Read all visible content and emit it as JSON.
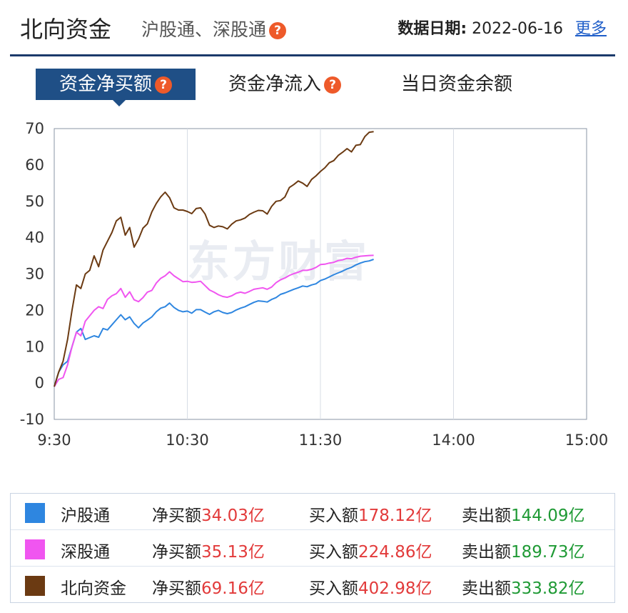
{
  "header": {
    "title": "北向资金",
    "subtitle": "沪股通、深股通",
    "help_glyph": "?",
    "date_label": "数据日期:",
    "date_value": "2022-06-16",
    "more_link": "更多"
  },
  "tabs": [
    {
      "label": "资金净买额",
      "active": true
    },
    {
      "label": "资金净流入",
      "active": false
    },
    {
      "label": "当日资金余额",
      "active": false
    }
  ],
  "watermark": "东方财富",
  "chart_data": {
    "type": "line",
    "x_ticks": [
      "9:30",
      "10:30",
      "11:30",
      "14:00",
      "15:00"
    ],
    "y_ticks": [
      70,
      60,
      50,
      40,
      30,
      20,
      10,
      0,
      -10
    ],
    "ylim": [
      -10,
      70
    ],
    "x_domain_minutes": [
      0,
      240
    ],
    "series": [
      {
        "name": "沪股通",
        "color": "#2e86e0",
        "points": [
          [
            0,
            -1
          ],
          [
            2,
            3
          ],
          [
            4,
            5
          ],
          [
            6,
            6
          ],
          [
            8,
            10
          ],
          [
            10,
            14
          ],
          [
            12,
            15
          ],
          [
            14,
            12
          ],
          [
            16,
            12.5
          ],
          [
            18,
            13
          ],
          [
            20,
            12.6
          ],
          [
            22,
            15
          ],
          [
            24,
            14.6
          ],
          [
            26,
            16
          ],
          [
            28,
            17.4
          ],
          [
            30,
            18.8
          ],
          [
            32,
            17.4
          ],
          [
            34,
            18.2
          ],
          [
            36,
            16.4
          ],
          [
            38,
            15.2
          ],
          [
            40,
            16.5
          ],
          [
            42,
            17.3
          ],
          [
            44,
            18.2
          ],
          [
            46,
            19.6
          ],
          [
            48,
            20.6
          ],
          [
            50,
            21
          ],
          [
            52,
            22
          ],
          [
            54,
            20.8
          ],
          [
            56,
            20
          ],
          [
            58,
            19.6
          ],
          [
            60,
            19.8
          ],
          [
            62,
            19.2
          ],
          [
            64,
            20.2
          ],
          [
            66,
            20.2
          ],
          [
            68,
            19.5
          ],
          [
            70,
            18.9
          ],
          [
            72,
            19.6
          ],
          [
            74,
            20
          ],
          [
            76,
            19.4
          ],
          [
            78,
            19.1
          ],
          [
            80,
            19.4
          ],
          [
            82,
            20.1
          ],
          [
            84,
            20.6
          ],
          [
            86,
            21
          ],
          [
            88,
            21.6
          ],
          [
            90,
            22.2
          ],
          [
            92,
            22.6
          ],
          [
            94,
            22.5
          ],
          [
            96,
            22.3
          ],
          [
            98,
            23
          ],
          [
            100,
            23.5
          ],
          [
            102,
            24.4
          ],
          [
            104,
            24.8
          ],
          [
            106,
            25.3
          ],
          [
            108,
            25.8
          ],
          [
            110,
            26.2
          ],
          [
            112,
            26.7
          ],
          [
            114,
            26.5
          ],
          [
            116,
            27
          ],
          [
            118,
            27.3
          ],
          [
            120,
            28.2
          ],
          [
            122,
            28.6
          ],
          [
            124,
            29.2
          ],
          [
            126,
            29.8
          ],
          [
            128,
            30.3
          ],
          [
            130,
            30.8
          ],
          [
            132,
            31.4
          ],
          [
            134,
            31.8
          ],
          [
            136,
            32.5
          ],
          [
            138,
            33
          ],
          [
            140,
            33.4
          ],
          [
            142,
            33.6
          ],
          [
            144,
            34.03
          ]
        ]
      },
      {
        "name": "深股通",
        "color": "#f055f0",
        "points": [
          [
            0,
            -1
          ],
          [
            2,
            1
          ],
          [
            4,
            1.5
          ],
          [
            6,
            5
          ],
          [
            8,
            10
          ],
          [
            10,
            14
          ],
          [
            12,
            13
          ],
          [
            14,
            17
          ],
          [
            16,
            18.5
          ],
          [
            18,
            20
          ],
          [
            20,
            21
          ],
          [
            22,
            20.5
          ],
          [
            24,
            23
          ],
          [
            26,
            24
          ],
          [
            28,
            24.6
          ],
          [
            30,
            26
          ],
          [
            32,
            23.6
          ],
          [
            34,
            25.1
          ],
          [
            36,
            22.9
          ],
          [
            38,
            22.4
          ],
          [
            40,
            23.5
          ],
          [
            42,
            25
          ],
          [
            44,
            25.5
          ],
          [
            46,
            27.5
          ],
          [
            48,
            28.8
          ],
          [
            50,
            29.5
          ],
          [
            52,
            30.6
          ],
          [
            54,
            29.5
          ],
          [
            56,
            28.7
          ],
          [
            58,
            27.9
          ],
          [
            60,
            28
          ],
          [
            62,
            27.7
          ],
          [
            64,
            27.8
          ],
          [
            66,
            28
          ],
          [
            68,
            26.8
          ],
          [
            70,
            25.6
          ],
          [
            72,
            25
          ],
          [
            74,
            24.3
          ],
          [
            76,
            23.8
          ],
          [
            78,
            23.6
          ],
          [
            80,
            24
          ],
          [
            82,
            24.7
          ],
          [
            84,
            25
          ],
          [
            86,
            24.7
          ],
          [
            88,
            25.2
          ],
          [
            90,
            25.8
          ],
          [
            92,
            26
          ],
          [
            94,
            26.2
          ],
          [
            96,
            25.8
          ],
          [
            98,
            26.4
          ],
          [
            100,
            27.6
          ],
          [
            102,
            28.4
          ],
          [
            104,
            28.9
          ],
          [
            106,
            29.6
          ],
          [
            108,
            30.1
          ],
          [
            110,
            30.5
          ],
          [
            112,
            31
          ],
          [
            114,
            31
          ],
          [
            116,
            31.3
          ],
          [
            118,
            31.8
          ],
          [
            120,
            32.6
          ],
          [
            122,
            32.7
          ],
          [
            124,
            33
          ],
          [
            126,
            33.2
          ],
          [
            128,
            33.7
          ],
          [
            130,
            33.9
          ],
          [
            132,
            34.3
          ],
          [
            134,
            34.2
          ],
          [
            136,
            34.6
          ],
          [
            138,
            34.9
          ],
          [
            140,
            35
          ],
          [
            142,
            35.1
          ],
          [
            144,
            35.13
          ]
        ]
      },
      {
        "name": "北向资金",
        "color": "#6b3a12",
        "points": [
          [
            0,
            -1
          ],
          [
            2,
            3
          ],
          [
            4,
            6
          ],
          [
            6,
            12
          ],
          [
            8,
            20
          ],
          [
            10,
            27
          ],
          [
            12,
            26
          ],
          [
            14,
            30
          ],
          [
            16,
            31
          ],
          [
            18,
            35
          ],
          [
            20,
            32
          ],
          [
            22,
            36.6
          ],
          [
            24,
            39
          ],
          [
            26,
            41.4
          ],
          [
            28,
            44.6
          ],
          [
            30,
            45.6
          ],
          [
            32,
            40.7
          ],
          [
            34,
            42.8
          ],
          [
            36,
            37.4
          ],
          [
            38,
            39.6
          ],
          [
            40,
            42.6
          ],
          [
            42,
            43.8
          ],
          [
            44,
            47.1
          ],
          [
            46,
            49.4
          ],
          [
            48,
            51.2
          ],
          [
            50,
            52.5
          ],
          [
            52,
            51
          ],
          [
            54,
            48.2
          ],
          [
            56,
            47.6
          ],
          [
            58,
            47.6
          ],
          [
            60,
            47.2
          ],
          [
            62,
            46.6
          ],
          [
            64,
            48
          ],
          [
            66,
            48.2
          ],
          [
            68,
            46.5
          ],
          [
            70,
            43.4
          ],
          [
            72,
            42.8
          ],
          [
            74,
            43.2
          ],
          [
            76,
            43
          ],
          [
            78,
            42.4
          ],
          [
            80,
            43.7
          ],
          [
            82,
            44.6
          ],
          [
            84,
            44.9
          ],
          [
            86,
            45.4
          ],
          [
            88,
            46.4
          ],
          [
            90,
            47
          ],
          [
            92,
            47.5
          ],
          [
            94,
            47.4
          ],
          [
            96,
            46.5
          ],
          [
            98,
            48.6
          ],
          [
            100,
            50
          ],
          [
            102,
            50.2
          ],
          [
            104,
            51.2
          ],
          [
            106,
            53.8
          ],
          [
            108,
            54.6
          ],
          [
            110,
            55.6
          ],
          [
            112,
            55
          ],
          [
            114,
            54.1
          ],
          [
            116,
            56
          ],
          [
            118,
            57
          ],
          [
            120,
            58.2
          ],
          [
            122,
            59.2
          ],
          [
            124,
            60.6
          ],
          [
            126,
            61.2
          ],
          [
            128,
            62.6
          ],
          [
            130,
            63.5
          ],
          [
            132,
            64.5
          ],
          [
            134,
            63.6
          ],
          [
            136,
            65.4
          ],
          [
            138,
            65.6
          ],
          [
            140,
            67.8
          ],
          [
            142,
            69
          ],
          [
            144,
            69.16
          ]
        ]
      }
    ]
  },
  "legend": [
    {
      "name": "沪股通",
      "color": "#2e86e0",
      "net_label": "净买额",
      "net_value": "34.03亿",
      "buy_label": "买入额",
      "buy_value": "178.12亿",
      "sell_label": "卖出额",
      "sell_value": "144.09亿"
    },
    {
      "name": "深股通",
      "color": "#f055f0",
      "net_label": "净买额",
      "net_value": "35.13亿",
      "buy_label": "买入额",
      "buy_value": "224.86亿",
      "sell_label": "卖出额",
      "sell_value": "189.73亿"
    },
    {
      "name": "北向资金",
      "color": "#6b3a12",
      "net_label": "净买额",
      "net_value": "69.16亿",
      "buy_label": "买入额",
      "buy_value": "402.98亿",
      "sell_label": "卖出额",
      "sell_value": "333.82亿"
    }
  ]
}
